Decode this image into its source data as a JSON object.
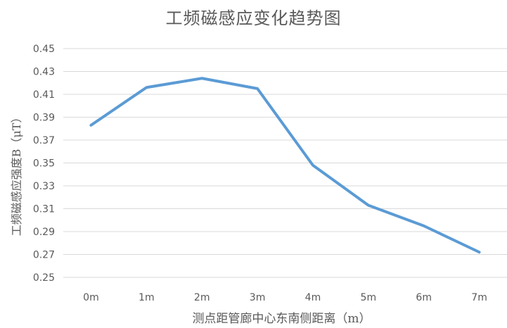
{
  "chart_data": {
    "type": "line",
    "title": "工频磁感应变化趋势图",
    "xlabel": "测点距管廊中心东南侧距离（m）",
    "ylabel": "工频磁感应强度B（μT）",
    "categories": [
      "0m",
      "1m",
      "2m",
      "3m",
      "4m",
      "5m",
      "6m",
      "7m"
    ],
    "series": [
      {
        "values": [
          0.383,
          0.416,
          0.424,
          0.415,
          0.348,
          0.313,
          0.295,
          0.272
        ],
        "color": "#5b9bd5"
      }
    ],
    "ylim": [
      0.25,
      0.45
    ],
    "yticks": [
      "0.25",
      "0.27",
      "0.29",
      "0.31",
      "0.33",
      "0.35",
      "0.37",
      "0.39",
      "0.41",
      "0.43",
      "0.45"
    ],
    "grid": true,
    "legend": "none"
  }
}
